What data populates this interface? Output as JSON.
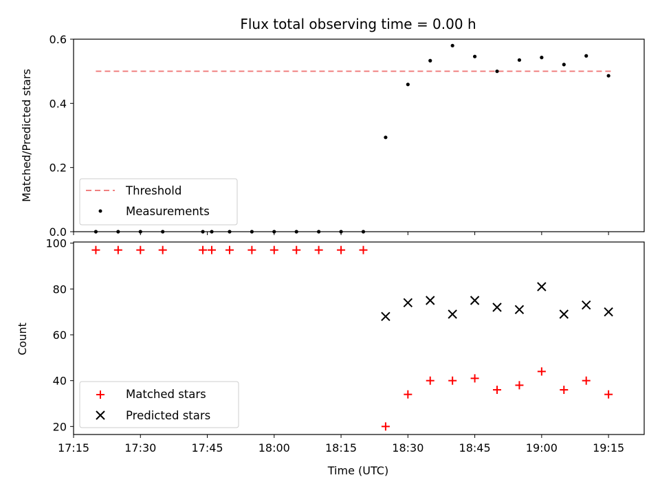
{
  "chart_data": [
    {
      "type": "scatter",
      "title": "Flux total observing time = 0.00 h",
      "xlabel": "",
      "ylabel": "Matched/Predicted stars",
      "ylim": [
        0,
        0.6
      ],
      "yticks": [
        "0.0",
        "0.2",
        "0.4",
        "0.6"
      ],
      "xlim": [
        "17:15",
        "19:23"
      ],
      "legend": {
        "placement": "lower-left",
        "entries": [
          "Threshold",
          "Measurements"
        ]
      },
      "threshold": {
        "name": "Threshold",
        "color": "#f08080",
        "value": 0.5,
        "x_start": "17:20",
        "x_end": "19:16"
      },
      "series": [
        {
          "name": "Measurements",
          "color": "#000000",
          "marker": "dot",
          "x": [
            "17:20",
            "17:25",
            "17:30",
            "17:35",
            "17:44",
            "17:46",
            "17:50",
            "17:55",
            "18:00",
            "18:05",
            "18:10",
            "18:15",
            "18:20",
            "18:25",
            "18:30",
            "18:35",
            "18:40",
            "18:45",
            "18:50",
            "18:55",
            "19:00",
            "19:05",
            "19:10",
            "19:15"
          ],
          "y": [
            0,
            0,
            0,
            0,
            0,
            0,
            0,
            0,
            0,
            0,
            0,
            0,
            0,
            0.294,
            0.459,
            0.533,
            0.58,
            0.546,
            0.5,
            0.535,
            0.543,
            0.521,
            0.548,
            0.486
          ]
        }
      ]
    },
    {
      "type": "scatter",
      "title": "",
      "xlabel": "Time (UTC)",
      "ylabel": "Count",
      "ylim": [
        16.5,
        100.5
      ],
      "yticks": [
        "20",
        "40",
        "60",
        "80",
        "100"
      ],
      "xlim": [
        "17:15",
        "19:23"
      ],
      "xticks": [
        "17:15",
        "17:30",
        "17:45",
        "18:00",
        "18:15",
        "18:30",
        "18:45",
        "19:00",
        "19:15"
      ],
      "legend": {
        "placement": "lower-left",
        "entries": [
          "Matched stars",
          "Predicted stars"
        ]
      },
      "series": [
        {
          "name": "Matched stars",
          "color": "#ff0000",
          "marker": "plus",
          "x": [
            "17:20",
            "17:25",
            "17:30",
            "17:35",
            "17:44",
            "17:46",
            "17:50",
            "17:55",
            "18:00",
            "18:05",
            "18:10",
            "18:15",
            "18:20",
            "18:25",
            "18:30",
            "18:35",
            "18:40",
            "18:45",
            "18:50",
            "18:55",
            "19:00",
            "19:05",
            "19:10",
            "19:15"
          ],
          "y": [
            97,
            97,
            97,
            97,
            97,
            97,
            97,
            97,
            97,
            97,
            97,
            97,
            97,
            20,
            34,
            40,
            40,
            41,
            36,
            38,
            44,
            36,
            40,
            34
          ]
        },
        {
          "name": "Predicted stars",
          "color": "#000000",
          "marker": "x",
          "x": [
            "18:25",
            "18:30",
            "18:35",
            "18:40",
            "18:45",
            "18:50",
            "18:55",
            "19:00",
            "19:05",
            "19:10",
            "19:15"
          ],
          "y": [
            68,
            74,
            75,
            69,
            75,
            72,
            71,
            81,
            69,
            73,
            70
          ]
        }
      ]
    }
  ]
}
